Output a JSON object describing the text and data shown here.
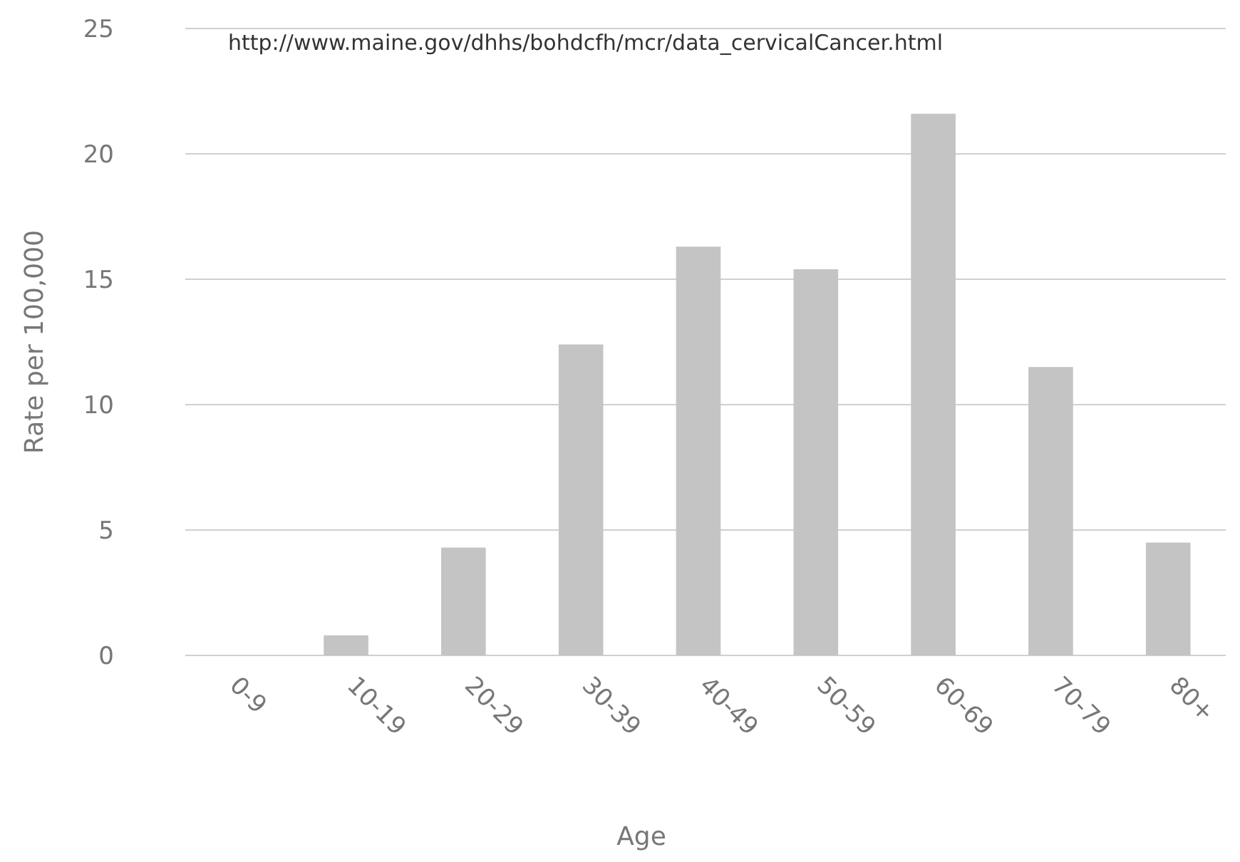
{
  "chart_data": {
    "type": "bar",
    "xlabel": "Age",
    "ylabel": "Rate per 100,000",
    "annotations": [
      "http://www.maine.gov/dhhs/bohdcfh/mcr/data_cervicalCancer.html"
    ],
    "categories": [
      "0-9",
      "10-19",
      "20-29",
      "30-39",
      "40-49",
      "50-59",
      "60-69",
      "70-79",
      "80+"
    ],
    "values": [
      0,
      0.8,
      4.3,
      12.4,
      16.3,
      15.4,
      21.6,
      11.5,
      4.5
    ],
    "color": "#c4c4c4",
    "ylim": [
      0,
      25
    ],
    "yticks": [
      0,
      5,
      10,
      15,
      20,
      25
    ],
    "grid": "y"
  }
}
